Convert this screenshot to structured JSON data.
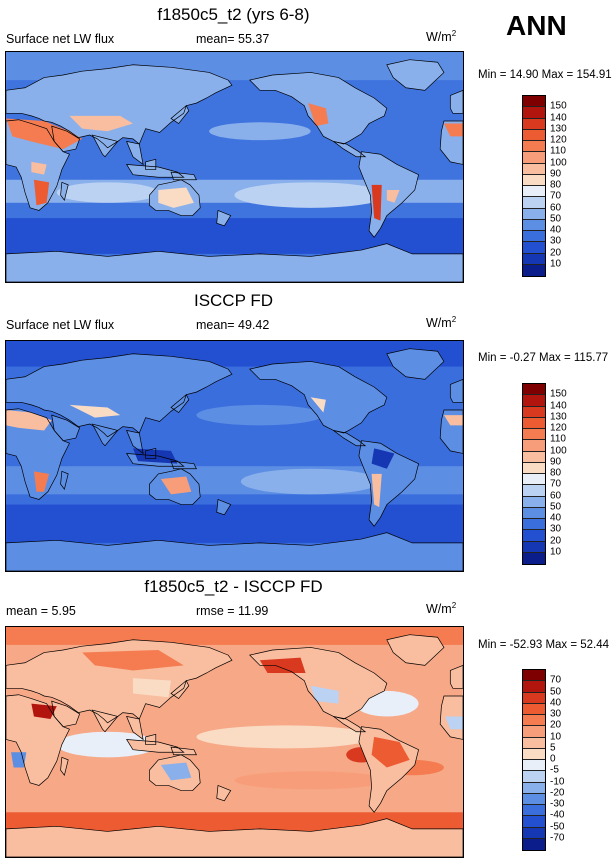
{
  "season": "ANN",
  "panels": [
    {
      "title": "f1850c5_t2 (yrs 6-8)",
      "left_label": "Surface net LW flux",
      "mid_label": "mean=  55.37",
      "units_base": "W/m",
      "units_exp": "2",
      "minmax": "Min =  14.90 Max = 154.91",
      "colorbar": {
        "labels": [
          "150",
          "140",
          "130",
          "120",
          "110",
          "100",
          "90",
          "80",
          "70",
          "60",
          "50",
          "40",
          "30",
          "20",
          "10"
        ],
        "colors": [
          "#7f0000",
          "#b1150d",
          "#d93a1f",
          "#ec5b32",
          "#f47c50",
          "#f89d79",
          "#f9bd9f",
          "#fadcc5",
          "#e9eff9",
          "#bcd2f3",
          "#8ab0ec",
          "#5c8ee4",
          "#3b6edd",
          "#2350d0",
          "#1537b3",
          "#0b1d8a"
        ]
      },
      "map": {
        "field": "model",
        "min": 14.9,
        "max": 154.91
      }
    },
    {
      "title": "ISCCP FD",
      "left_label": "Surface net LW flux",
      "mid_label": "mean=  49.42",
      "units_base": "W/m",
      "units_exp": "2",
      "minmax": "Min =  -0.27 Max = 115.77",
      "colorbar": {
        "labels": [
          "150",
          "140",
          "130",
          "120",
          "110",
          "100",
          "90",
          "80",
          "70",
          "60",
          "50",
          "40",
          "30",
          "20",
          "10"
        ],
        "colors": [
          "#7f0000",
          "#b1150d",
          "#d93a1f",
          "#ec5b32",
          "#f47c50",
          "#f89d79",
          "#f9bd9f",
          "#fadcc5",
          "#e9eff9",
          "#bcd2f3",
          "#8ab0ec",
          "#5c8ee4",
          "#3b6edd",
          "#2350d0",
          "#1537b3",
          "#0b1d8a"
        ]
      },
      "map": {
        "field": "obs",
        "min": -0.27,
        "max": 115.77
      }
    },
    {
      "title": "f1850c5_t2 - ISCCP FD",
      "left_label": "mean =   5.95",
      "mid_label": "rmse =  11.99",
      "units_base": "W/m",
      "units_exp": "2",
      "minmax": "Min = -52.93 Max =  52.44",
      "colorbar": {
        "labels": [
          "70",
          "50",
          "40",
          "30",
          "20",
          "10",
          "5",
          "0",
          "-5",
          "-10",
          "-20",
          "-30",
          "-40",
          "-50",
          "-70"
        ],
        "colors": [
          "#7f0000",
          "#b1150d",
          "#d93a1f",
          "#ec5b32",
          "#f47c50",
          "#f89d79",
          "#f9bd9f",
          "#fadcc5",
          "#e9eff9",
          "#bcd2f3",
          "#8ab0ec",
          "#5c8ee4",
          "#3b6edd",
          "#2350d0",
          "#1537b3",
          "#0b1d8a"
        ]
      },
      "map": {
        "field": "diff",
        "min": -52.93,
        "max": 52.44
      }
    }
  ]
}
